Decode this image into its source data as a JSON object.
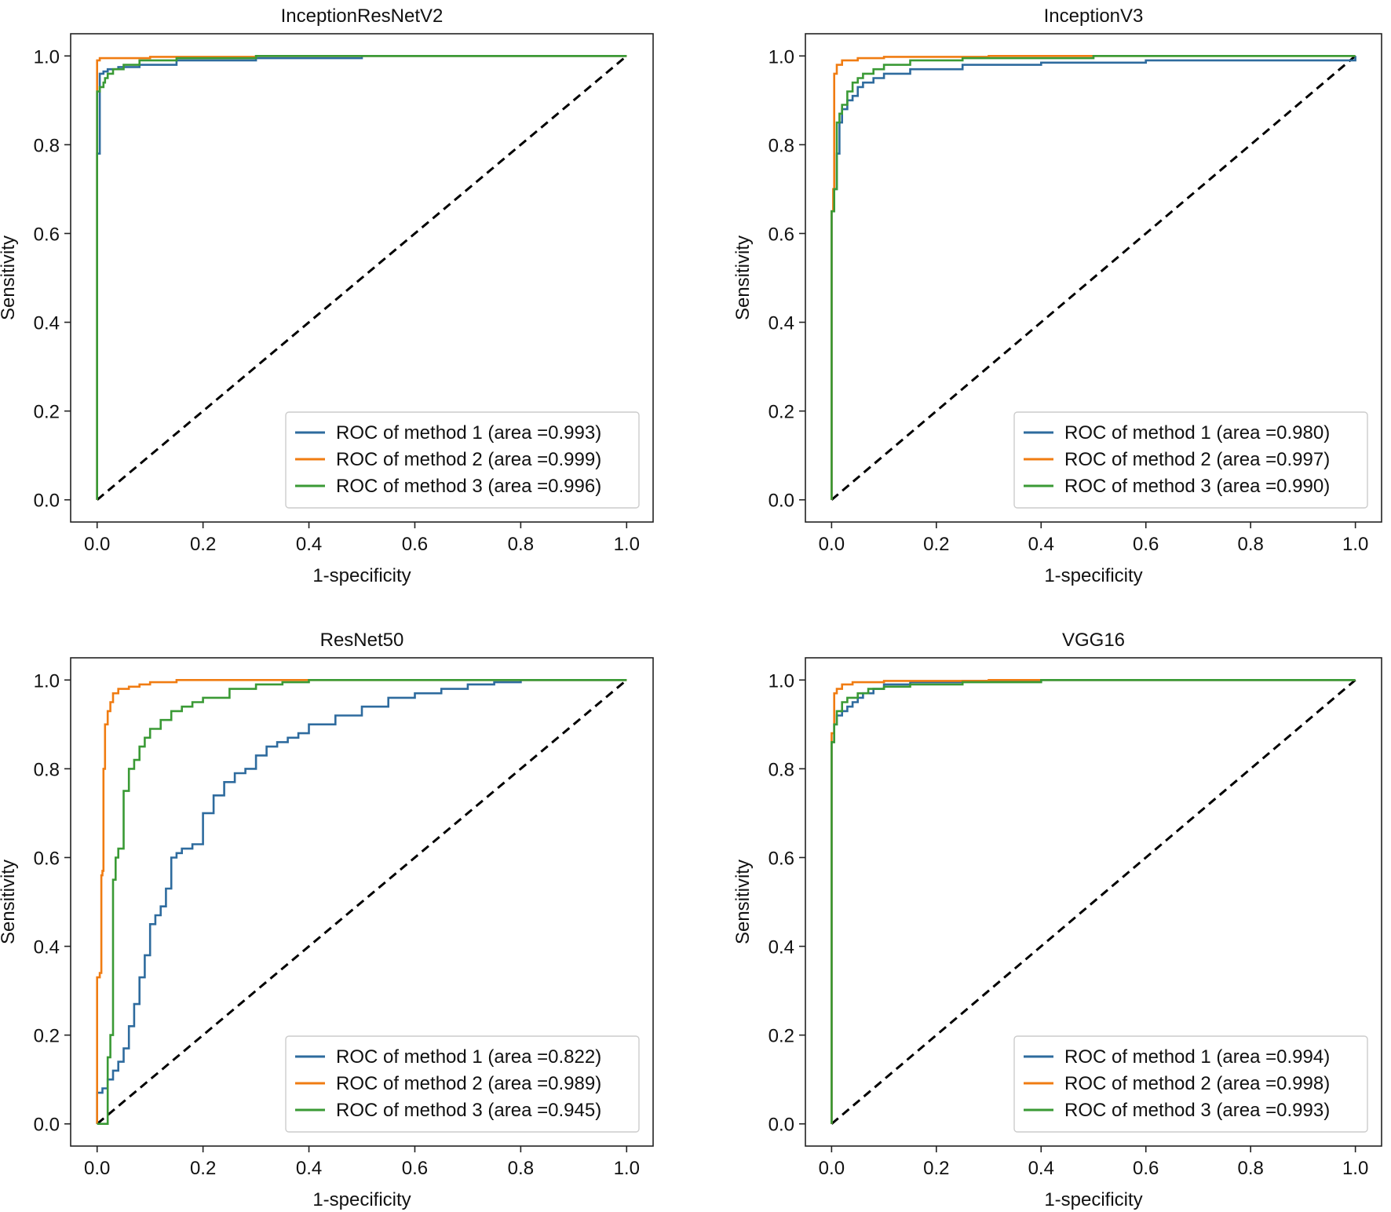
{
  "figure": {
    "panels": [
      {
        "id": "inceptionresnetv2",
        "title": "InceptionResNetV2"
      },
      {
        "id": "inceptionv3",
        "title": "InceptionV3"
      },
      {
        "id": "resnet50",
        "title": "ResNet50"
      },
      {
        "id": "vgg16",
        "title": "VGG16"
      }
    ]
  },
  "colors": {
    "method1": "#2e6b9e",
    "method2": "#f07c12",
    "method3": "#3a9a35",
    "diagonal": "#000000"
  },
  "chart_data": [
    {
      "type": "line",
      "title": "InceptionResNetV2",
      "xlabel": "1-specificity",
      "ylabel": "Sensitivity",
      "xlim": [
        0,
        1
      ],
      "ylim": [
        0,
        1
      ],
      "xticks": [
        "0.0",
        "0.2",
        "0.4",
        "0.6",
        "0.8",
        "1.0"
      ],
      "yticks": [
        "0.0",
        "0.2",
        "0.4",
        "0.6",
        "0.8",
        "1.0"
      ],
      "legend_position": "lower-right",
      "grid": false,
      "series": [
        {
          "name": "ROC of method 1 (area =0.993)",
          "color_key": "method1",
          "x": [
            0,
            0,
            0.005,
            0.005,
            0.012,
            0.02,
            0.04,
            0.08,
            0.15,
            0.3,
            0.5,
            1.0
          ],
          "y": [
            0,
            0.78,
            0.79,
            0.96,
            0.965,
            0.97,
            0.975,
            0.98,
            0.99,
            0.995,
            1.0,
            1.0
          ]
        },
        {
          "name": "ROC of method 2 (area =0.999)",
          "color_key": "method2",
          "x": [
            0,
            0,
            0.005,
            0.05,
            0.1,
            0.3,
            1.0
          ],
          "y": [
            0,
            0.99,
            0.995,
            0.995,
            0.998,
            1.0,
            1.0
          ]
        },
        {
          "name": "ROC of method 3 (area =0.996)",
          "color_key": "method3",
          "x": [
            0,
            0,
            0.005,
            0.008,
            0.012,
            0.015,
            0.02,
            0.03,
            0.05,
            0.08,
            0.15,
            0.3,
            1.0
          ],
          "y": [
            0,
            0.92,
            0.93,
            0.93,
            0.94,
            0.95,
            0.96,
            0.97,
            0.98,
            0.99,
            0.995,
            1.0,
            1.0
          ]
        }
      ],
      "diagonal": true
    },
    {
      "type": "line",
      "title": "InceptionV3",
      "xlabel": "1-specificity",
      "ylabel": "Sensitivity",
      "xlim": [
        0,
        1
      ],
      "ylim": [
        0,
        1
      ],
      "xticks": [
        "0.0",
        "0.2",
        "0.4",
        "0.6",
        "0.8",
        "1.0"
      ],
      "yticks": [
        "0.0",
        "0.2",
        "0.4",
        "0.6",
        "0.8",
        "1.0"
      ],
      "legend_position": "lower-right",
      "grid": false,
      "series": [
        {
          "name": "ROC of method 1 (area =0.980)",
          "color_key": "method1",
          "x": [
            0,
            0,
            0.005,
            0.01,
            0.015,
            0.02,
            0.03,
            0.04,
            0.05,
            0.06,
            0.08,
            0.1,
            0.15,
            0.25,
            0.4,
            0.6,
            1.0
          ],
          "y": [
            0,
            0.65,
            0.7,
            0.78,
            0.85,
            0.88,
            0.9,
            0.91,
            0.93,
            0.94,
            0.95,
            0.96,
            0.97,
            0.98,
            0.985,
            0.99,
            1.0
          ]
        },
        {
          "name": "ROC of method 2 (area =0.997)",
          "color_key": "method2",
          "x": [
            0,
            0,
            0.003,
            0.005,
            0.01,
            0.02,
            0.05,
            0.1,
            0.3,
            1.0
          ],
          "y": [
            0,
            0.65,
            0.7,
            0.96,
            0.98,
            0.99,
            0.995,
            0.998,
            1.0,
            1.0
          ]
        },
        {
          "name": "ROC of method 3 (area =0.990)",
          "color_key": "method3",
          "x": [
            0,
            0,
            0.005,
            0.01,
            0.015,
            0.02,
            0.03,
            0.04,
            0.05,
            0.06,
            0.08,
            0.1,
            0.15,
            0.25,
            0.5,
            1.0
          ],
          "y": [
            0,
            0.65,
            0.7,
            0.85,
            0.87,
            0.89,
            0.92,
            0.94,
            0.95,
            0.96,
            0.97,
            0.98,
            0.99,
            0.995,
            1.0,
            1.0
          ]
        }
      ],
      "diagonal": true
    },
    {
      "type": "line",
      "title": "ResNet50",
      "xlabel": "1-specificity",
      "ylabel": "Sensitivity",
      "xlim": [
        0,
        1
      ],
      "ylim": [
        0,
        1
      ],
      "xticks": [
        "0.0",
        "0.2",
        "0.4",
        "0.6",
        "0.8",
        "1.0"
      ],
      "yticks": [
        "0.0",
        "0.2",
        "0.4",
        "0.6",
        "0.8",
        "1.0"
      ],
      "legend_position": "lower-right",
      "grid": false,
      "series": [
        {
          "name": "ROC of method 1 (area =0.822)",
          "color_key": "method1",
          "x": [
            0,
            0,
            0.01,
            0.02,
            0.03,
            0.04,
            0.05,
            0.06,
            0.07,
            0.08,
            0.09,
            0.1,
            0.11,
            0.12,
            0.13,
            0.14,
            0.15,
            0.16,
            0.17,
            0.18,
            0.2,
            0.22,
            0.24,
            0.26,
            0.28,
            0.3,
            0.32,
            0.34,
            0.36,
            0.38,
            0.4,
            0.45,
            0.5,
            0.55,
            0.6,
            0.65,
            0.7,
            0.75,
            0.8,
            1.0
          ],
          "y": [
            0,
            0.07,
            0.08,
            0.1,
            0.12,
            0.14,
            0.17,
            0.22,
            0.27,
            0.33,
            0.38,
            0.45,
            0.47,
            0.49,
            0.53,
            0.6,
            0.61,
            0.62,
            0.62,
            0.63,
            0.7,
            0.74,
            0.77,
            0.79,
            0.8,
            0.83,
            0.85,
            0.86,
            0.87,
            0.88,
            0.9,
            0.92,
            0.94,
            0.96,
            0.97,
            0.98,
            0.99,
            0.995,
            1.0,
            1.0
          ]
        },
        {
          "name": "ROC of method 2 (area =0.989)",
          "color_key": "method2",
          "x": [
            0,
            0,
            0.005,
            0.008,
            0.01,
            0.012,
            0.015,
            0.02,
            0.025,
            0.03,
            0.04,
            0.06,
            0.08,
            0.1,
            0.15,
            0.3,
            1.0
          ],
          "y": [
            0,
            0.33,
            0.34,
            0.56,
            0.57,
            0.8,
            0.9,
            0.93,
            0.95,
            0.97,
            0.98,
            0.985,
            0.99,
            0.995,
            1.0,
            1.0,
            1.0
          ]
        },
        {
          "name": "ROC of method 3 (area =0.945)",
          "color_key": "method3",
          "x": [
            0,
            0.01,
            0.02,
            0.025,
            0.03,
            0.035,
            0.04,
            0.05,
            0.06,
            0.07,
            0.08,
            0.09,
            0.1,
            0.12,
            0.14,
            0.16,
            0.18,
            0.2,
            0.25,
            0.3,
            0.35,
            0.4,
            0.5,
            1.0
          ],
          "y": [
            0,
            0,
            0.15,
            0.2,
            0.55,
            0.6,
            0.62,
            0.75,
            0.8,
            0.82,
            0.85,
            0.87,
            0.89,
            0.91,
            0.93,
            0.94,
            0.95,
            0.96,
            0.98,
            0.99,
            0.995,
            1.0,
            1.0,
            1.0
          ]
        }
      ],
      "diagonal": true
    },
    {
      "type": "line",
      "title": "VGG16",
      "xlabel": "1-specificity",
      "ylabel": "Sensitivity",
      "xlim": [
        0,
        1
      ],
      "ylim": [
        0,
        1
      ],
      "xticks": [
        "0.0",
        "0.2",
        "0.4",
        "0.6",
        "0.8",
        "1.0"
      ],
      "yticks": [
        "0.0",
        "0.2",
        "0.4",
        "0.6",
        "0.8",
        "1.0"
      ],
      "legend_position": "lower-right",
      "grid": false,
      "series": [
        {
          "name": "ROC of method 1 (area =0.994)",
          "color_key": "method1",
          "x": [
            0,
            0,
            0.005,
            0.01,
            0.02,
            0.03,
            0.04,
            0.05,
            0.06,
            0.08,
            0.1,
            0.15,
            0.25,
            0.4,
            1.0
          ],
          "y": [
            0,
            0.86,
            0.9,
            0.92,
            0.93,
            0.94,
            0.95,
            0.96,
            0.97,
            0.98,
            0.99,
            0.995,
            0.998,
            1.0,
            1.0
          ]
        },
        {
          "name": "ROC of method 2 (area =0.998)",
          "color_key": "method2",
          "x": [
            0,
            0,
            0.005,
            0.01,
            0.02,
            0.04,
            0.1,
            0.3,
            1.0
          ],
          "y": [
            0,
            0.88,
            0.97,
            0.98,
            0.99,
            0.995,
            0.998,
            1.0,
            1.0
          ]
        },
        {
          "name": "ROC of method 3 (area =0.993)",
          "color_key": "method3",
          "x": [
            0,
            0,
            0.005,
            0.01,
            0.02,
            0.03,
            0.05,
            0.07,
            0.1,
            0.15,
            0.25,
            0.4,
            1.0
          ],
          "y": [
            0,
            0.86,
            0.9,
            0.93,
            0.95,
            0.96,
            0.97,
            0.98,
            0.985,
            0.99,
            0.995,
            1.0,
            1.0
          ]
        }
      ],
      "diagonal": true
    }
  ]
}
